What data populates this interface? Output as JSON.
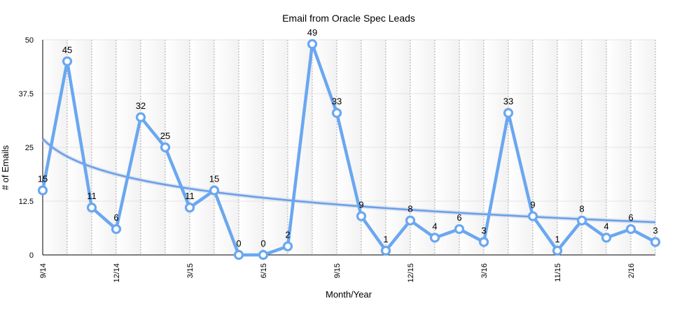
{
  "chart_data": {
    "type": "line",
    "title": "Email from Oracle Spec Leads",
    "xlabel": "Month/Year",
    "ylabel": "# of Emails",
    "ylim": [
      0,
      50
    ],
    "yticks": [
      "0",
      "12.5",
      "25",
      "37.5",
      "50"
    ],
    "xtick_labels": [
      {
        "index": 0,
        "label": "9/14"
      },
      {
        "index": 3,
        "label": "12/14"
      },
      {
        "index": 6,
        "label": "3/15"
      },
      {
        "index": 9,
        "label": "6/15"
      },
      {
        "index": 12,
        "label": "9/15"
      },
      {
        "index": 15,
        "label": "12/15"
      },
      {
        "index": 18,
        "label": "3/16"
      },
      {
        "index": 21,
        "label": "11/15"
      },
      {
        "index": 24,
        "label": "2/16"
      }
    ],
    "series": [
      {
        "values": [
          15,
          45,
          11,
          6,
          32,
          25,
          11,
          15,
          0,
          0,
          2,
          49,
          33,
          9,
          1,
          8,
          4,
          6,
          3,
          33,
          9,
          1,
          8,
          4,
          6,
          3
        ]
      }
    ],
    "trendline": {
      "type": "logarithmic",
      "start_value": 27,
      "end_value": 7.6
    },
    "colors": {
      "line": "#6aa7f0",
      "marker_fill": "#ffffff",
      "trend": "#6a9ee8",
      "band_shade": "#f2f2f2",
      "grid": "#999999"
    },
    "grid": true,
    "legend": "none"
  }
}
